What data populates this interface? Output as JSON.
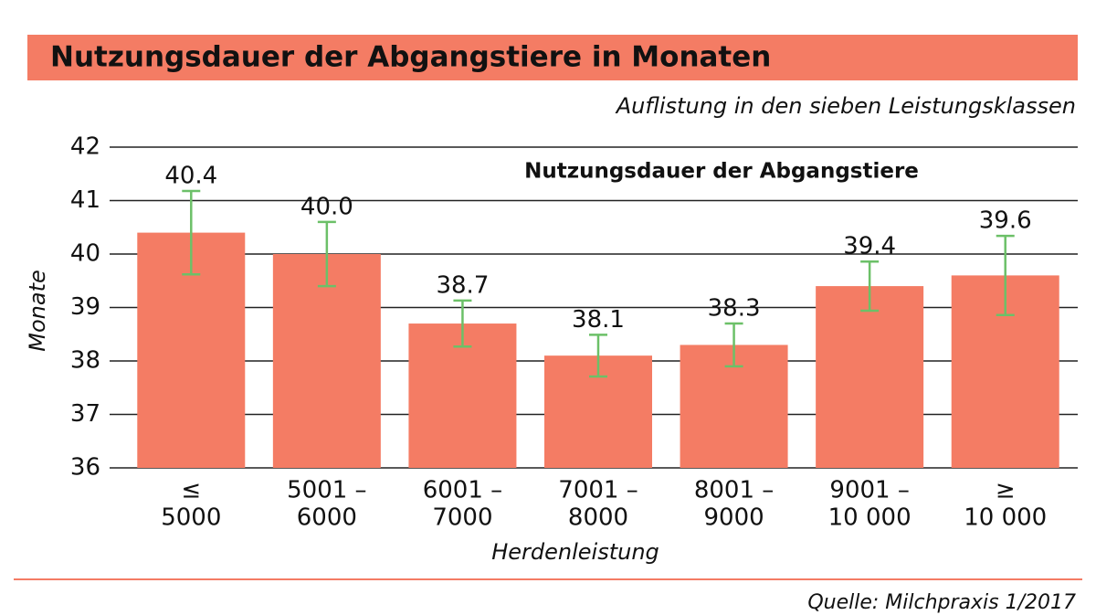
{
  "chart_data": {
    "type": "bar",
    "title": "Nutzungsdauer der Abgangstiere in Monaten",
    "subtitle": "Auflistung in den sieben Leistungsklassen",
    "series_label": "Nutzungsdauer der Abgangstiere",
    "y_label": "Monate",
    "x_label": "Herdenleistung",
    "source": "Quelle: Milchpraxis 1/2017",
    "categories": [
      [
        "≤",
        "5000"
      ],
      [
        "5001 –",
        "6000"
      ],
      [
        "6001 –",
        "7000"
      ],
      [
        "7001 –",
        "8000"
      ],
      [
        "8001 –",
        "9000"
      ],
      [
        "9001 –",
        "10 000"
      ],
      [
        "≥",
        "10 000"
      ]
    ],
    "values": [
      40.4,
      40.0,
      38.7,
      38.1,
      38.3,
      39.4,
      39.6
    ],
    "value_labels": [
      "40.4",
      "40.0",
      "38.7",
      "38.1",
      "38.3",
      "39.4",
      "39.6"
    ],
    "errors": [
      0.78,
      0.6,
      0.43,
      0.39,
      0.4,
      0.46,
      0.74
    ],
    "color": "#f47c64",
    "error_color": "#6cc068",
    "ylim": [
      36,
      42
    ],
    "yticks": [
      36,
      37,
      38,
      39,
      40,
      41,
      42
    ],
    "grid": true
  }
}
